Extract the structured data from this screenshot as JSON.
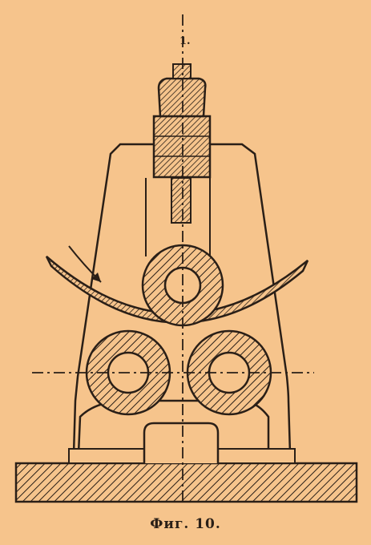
{
  "figure": {
    "caption": "Фиг. 10.",
    "axis_label": "1."
  },
  "colors": {
    "background": "#f6c48c",
    "ink": "#2a1f17"
  }
}
